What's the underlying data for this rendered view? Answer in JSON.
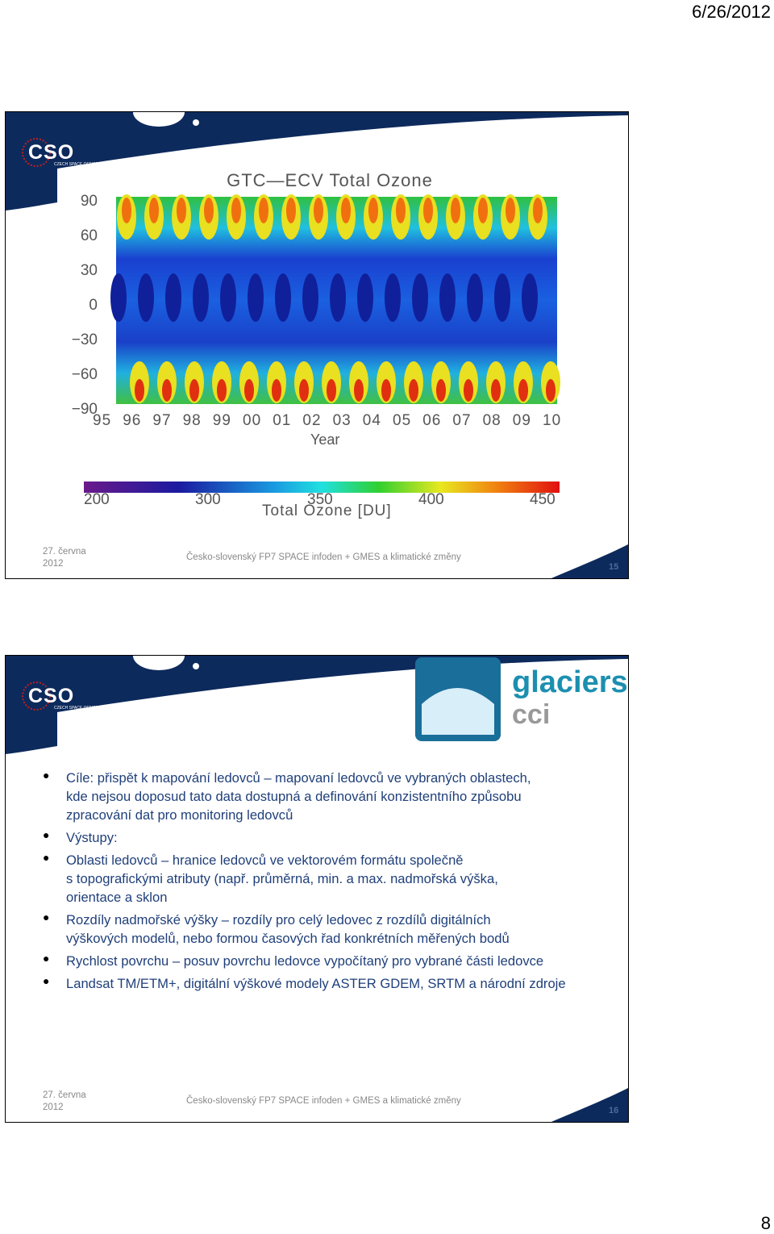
{
  "header": {
    "date": "6/26/2012"
  },
  "page_number": "8",
  "logo": {
    "name": "CSO",
    "subtitle": "CZECH SPACE OFFICE"
  },
  "footer": {
    "date_line1": "27. června",
    "date_line2": "2012",
    "text": "Česko-slovenský FP7 SPACE infoden + GMES a klimatické změny"
  },
  "slide1": {
    "number": "15",
    "figure": {
      "title": "GTC—ECV Total Ozone",
      "y_ticks": [
        "90",
        "60",
        "30",
        "0",
        "−30",
        "−60",
        "−90"
      ],
      "x_ticks": [
        "95",
        "96",
        "97",
        "98",
        "99",
        "00",
        "01",
        "02",
        "03",
        "04",
        "05",
        "06",
        "07",
        "08",
        "09",
        "10"
      ],
      "x_label": "Year",
      "colorbar_ticks": [
        "200",
        "300",
        "350",
        "400",
        "450"
      ],
      "colorbar_label": "Total Ozone [DU]"
    }
  },
  "slide2": {
    "number": "16",
    "brand": {
      "word1": "glaciers",
      "word2": "cci"
    },
    "bullets": [
      [
        "Cíle: přispět k mapování ledovců – mapovaní ledovců ve vybraných oblastech,",
        "kde nejsou doposud tato data dostupná a definování konzistentního způsobu",
        "zpracování dat pro monitoring ledovců"
      ],
      [
        "Výstupy:"
      ],
      [
        "Oblasti ledovců – hranice ledovců ve vektorovém formátu společně",
        "s topografickými atributy (např. průměrná, min. a max. nadmořská výška,",
        "orientace a sklon"
      ],
      [
        "Rozdíly nadmořské výšky – rozdíly pro celý ledovec z rozdílů digitálních",
        "výškových modelů, nebo formou časových řad konkrétních měřených bodů"
      ],
      [
        "Rychlost povrchu – posuv povrchu ledovce vypočítaný pro vybrané části ledovce"
      ],
      [
        "Landsat TM/ETM+, digitální výškové modely ASTER GDEM, SRTM a národní zdroje"
      ]
    ]
  }
}
